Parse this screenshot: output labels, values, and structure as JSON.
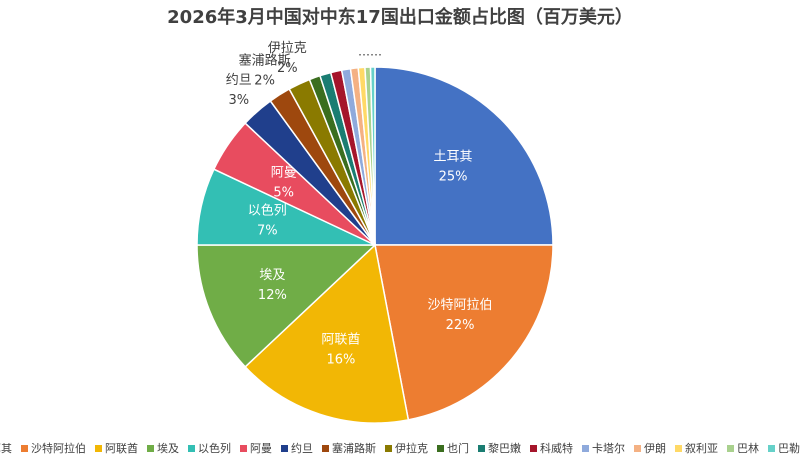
{
  "chart_data": {
    "type": "pie",
    "title": "2026年3月中国对中东17国出口金额占比图（百万美元）",
    "annotation": "……",
    "categories": [
      "土耳其",
      "沙特阿拉伯",
      "阿联酋",
      "埃及",
      "以色列",
      "阿曼",
      "约旦",
      "塞浦路斯",
      "伊拉克",
      "也门",
      "黎巴嫩",
      "科威特",
      "卡塔尔",
      "伊朗",
      "叙利亚",
      "巴林",
      "巴勒斯坦"
    ],
    "values": [
      25,
      22,
      16,
      12,
      7,
      5,
      3,
      2,
      2,
      1,
      1,
      1,
      0.8,
      0.7,
      0.6,
      0.5,
      0.4
    ],
    "value_labels": [
      "25%",
      "22%",
      "16%",
      "12%",
      "7%",
      "5%",
      "3%",
      "2%",
      "2%",
      null,
      null,
      null,
      null,
      null,
      null,
      null,
      null
    ],
    "colors": [
      "#4472c4",
      "#ed7d31",
      "#f2b705",
      "#70ad47",
      "#33bfb4",
      "#e84c5f",
      "#203f8c",
      "#9e480e",
      "#8a7a00",
      "#3b6e1f",
      "#1a7d72",
      "#a5152b",
      "#8faadc",
      "#f4b183",
      "#ffd966",
      "#a9d18e",
      "#66d1c9"
    ],
    "legend": "bottom"
  }
}
